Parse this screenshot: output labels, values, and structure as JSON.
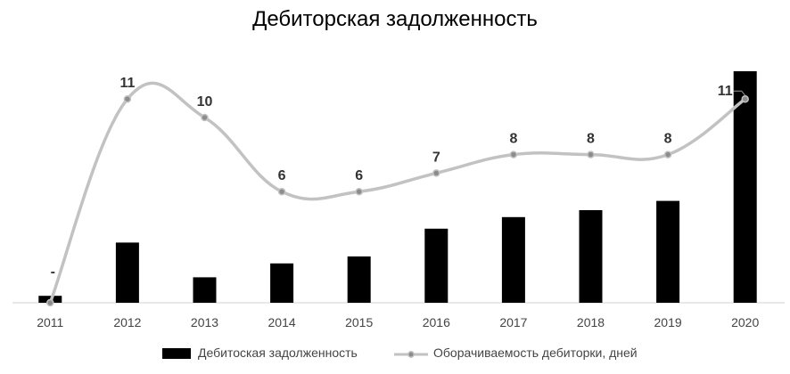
{
  "title": "Дебиторская задолженность",
  "legend": {
    "bar_label": "Дебитоская задолженность",
    "line_label": "Оборачиваемость дебиторки, дней"
  },
  "colors": {
    "bar": "#000000",
    "line": "#c2c2c2",
    "marker": "#8c8c8c",
    "axis": "#d0d0d0",
    "label": "#333333"
  },
  "chart_data": {
    "type": "bar+line",
    "categories": [
      "2011",
      "2012",
      "2013",
      "2014",
      "2015",
      "2016",
      "2017",
      "2018",
      "2019",
      "2020"
    ],
    "series": [
      {
        "name": "Дебитоская задолженность",
        "type": "bar",
        "values": [
          3,
          26,
          11,
          17,
          20,
          32,
          37,
          40,
          44,
          100
        ]
      },
      {
        "name": "Оборачиваемость дебиторки, дней",
        "type": "line",
        "values": [
          0,
          11,
          10,
          6,
          6,
          7,
          8,
          8,
          8,
          11
        ],
        "data_labels": [
          "-",
          "11",
          "10",
          "6",
          "6",
          "7",
          "8",
          "8",
          "8",
          "11"
        ]
      }
    ],
    "grid": false,
    "legend_position": "bottom"
  }
}
